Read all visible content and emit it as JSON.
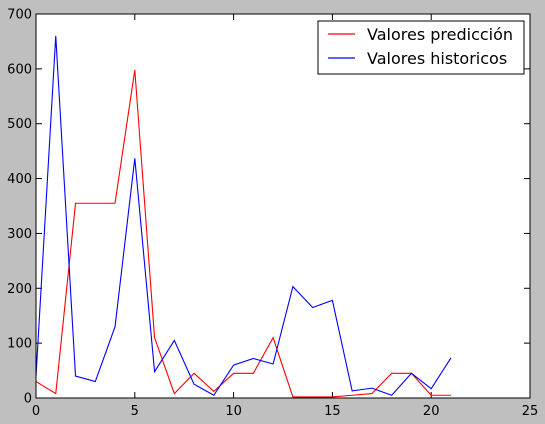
{
  "chart_data": {
    "type": "line",
    "title": "",
    "xlabel": "",
    "ylabel": "",
    "xlim": [
      0,
      25
    ],
    "ylim": [
      0,
      700
    ],
    "xticks": [
      0,
      5,
      10,
      15,
      20,
      25
    ],
    "yticks": [
      0,
      100,
      200,
      300,
      400,
      500,
      600,
      700
    ],
    "grid": false,
    "legend_position": "top-right",
    "series": [
      {
        "name": "Valores predicción",
        "color": "#ff0000",
        "x": [
          0,
          1,
          2,
          3,
          4,
          5,
          6,
          7,
          8,
          9,
          10,
          11,
          12,
          13,
          14,
          15,
          16,
          17,
          18,
          19,
          20,
          21
        ],
        "values": [
          30,
          8,
          355,
          355,
          355,
          598,
          110,
          8,
          45,
          12,
          45,
          45,
          110,
          2,
          2,
          2,
          5,
          8,
          45,
          45,
          5,
          5
        ]
      },
      {
        "name": "Valores historicos",
        "color": "#0000ff",
        "x": [
          0,
          1,
          2,
          3,
          4,
          5,
          6,
          7,
          8,
          9,
          10,
          11,
          12,
          13,
          14,
          15,
          16,
          17,
          18,
          19,
          20,
          21
        ],
        "values": [
          40,
          660,
          40,
          30,
          130,
          437,
          48,
          105,
          25,
          5,
          60,
          72,
          62,
          203,
          165,
          178,
          13,
          18,
          5,
          45,
          17,
          73
        ]
      }
    ]
  }
}
